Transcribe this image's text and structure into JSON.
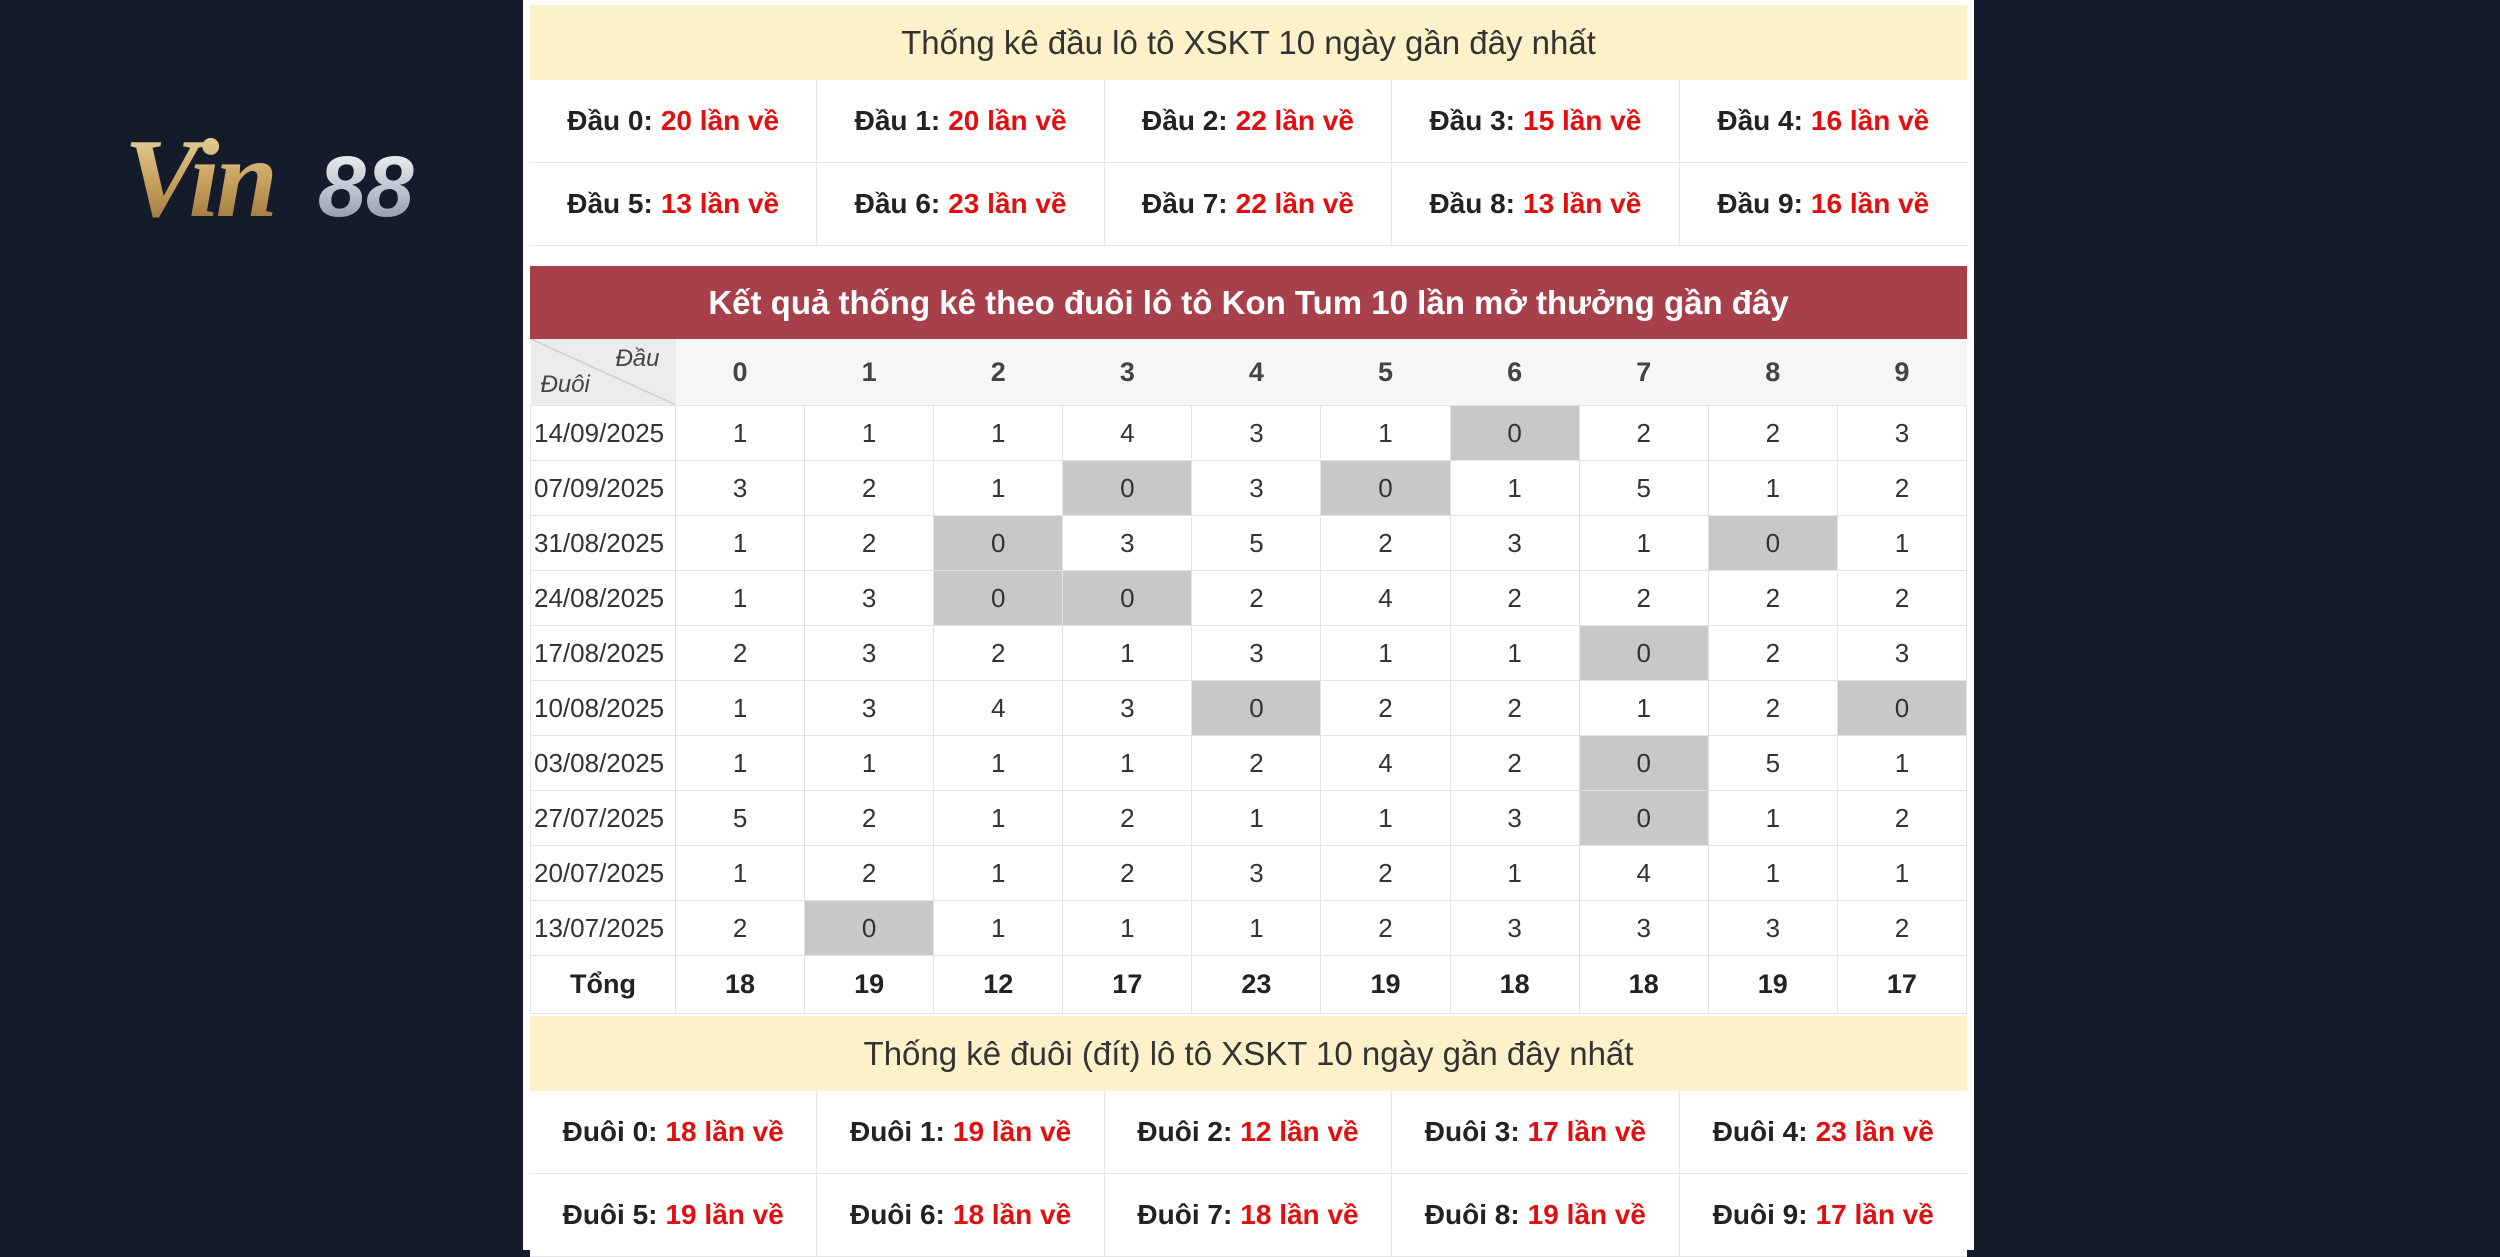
{
  "logo": {
    "text": "Vin88",
    "part1": "Vin",
    "part2": "88"
  },
  "head_summary": {
    "title": "Thống kê đầu lô tô XSKT 10 ngày gần đây nhất",
    "items": [
      {
        "label": "Đầu 0:",
        "value": "20 lần về"
      },
      {
        "label": "Đầu 1:",
        "value": "20 lần về"
      },
      {
        "label": "Đầu 2:",
        "value": "22 lần về"
      },
      {
        "label": "Đầu 3:",
        "value": "15 lần về"
      },
      {
        "label": "Đầu 4:",
        "value": "16 lần về"
      },
      {
        "label": "Đầu 5:",
        "value": "13 lần về"
      },
      {
        "label": "Đầu 6:",
        "value": "23 lần về"
      },
      {
        "label": "Đầu 7:",
        "value": "22 lần về"
      },
      {
        "label": "Đầu 8:",
        "value": "13 lần về"
      },
      {
        "label": "Đầu 9:",
        "value": "16 lần về"
      }
    ]
  },
  "table": {
    "title": "Kết quả thống kê theo đuôi lô tô Kon Tum 10 lần mở thưởng gần đây",
    "corner_top": "Đầu",
    "corner_bottom": "Đuôi",
    "columns": [
      "0",
      "1",
      "2",
      "3",
      "4",
      "5",
      "6",
      "7",
      "8",
      "9"
    ],
    "rows": [
      {
        "date": "14/09/2025",
        "values": [
          "1",
          "1",
          "1",
          "4",
          "3",
          "1",
          "0",
          "2",
          "2",
          "3"
        ]
      },
      {
        "date": "07/09/2025",
        "values": [
          "3",
          "2",
          "1",
          "0",
          "3",
          "0",
          "1",
          "5",
          "1",
          "2"
        ]
      },
      {
        "date": "31/08/2025",
        "values": [
          "1",
          "2",
          "0",
          "3",
          "5",
          "2",
          "3",
          "1",
          "0",
          "1"
        ]
      },
      {
        "date": "24/08/2025",
        "values": [
          "1",
          "3",
          "0",
          "0",
          "2",
          "4",
          "2",
          "2",
          "2",
          "2"
        ]
      },
      {
        "date": "17/08/2025",
        "values": [
          "2",
          "3",
          "2",
          "1",
          "3",
          "1",
          "1",
          "0",
          "2",
          "3"
        ]
      },
      {
        "date": "10/08/2025",
        "values": [
          "1",
          "3",
          "4",
          "3",
          "0",
          "2",
          "2",
          "1",
          "2",
          "0"
        ]
      },
      {
        "date": "03/08/2025",
        "values": [
          "1",
          "1",
          "1",
          "1",
          "2",
          "4",
          "2",
          "0",
          "5",
          "1"
        ]
      },
      {
        "date": "27/07/2025",
        "values": [
          "5",
          "2",
          "1",
          "2",
          "1",
          "1",
          "3",
          "0",
          "1",
          "2"
        ]
      },
      {
        "date": "20/07/2025",
        "values": [
          "1",
          "2",
          "1",
          "2",
          "3",
          "2",
          "1",
          "4",
          "1",
          "1"
        ]
      },
      {
        "date": "13/07/2025",
        "values": [
          "2",
          "0",
          "1",
          "1",
          "1",
          "2",
          "3",
          "3",
          "3",
          "2"
        ]
      }
    ],
    "total_label": "Tổng",
    "totals": [
      "18",
      "19",
      "12",
      "17",
      "23",
      "19",
      "18",
      "18",
      "19",
      "17"
    ]
  },
  "tail_summary": {
    "title": "Thống kê đuôi (đít) lô tô XSKT 10 ngày gần đây nhất",
    "items": [
      {
        "label": "Đuôi 0:",
        "value": "18 lần về"
      },
      {
        "label": "Đuôi 1:",
        "value": "19 lần về"
      },
      {
        "label": "Đuôi 2:",
        "value": "12 lần về"
      },
      {
        "label": "Đuôi 3:",
        "value": "17 lần về"
      },
      {
        "label": "Đuôi 4:",
        "value": "23 lần về"
      },
      {
        "label": "Đuôi 5:",
        "value": "19 lần về"
      },
      {
        "label": "Đuôi 6:",
        "value": "18 lần về"
      },
      {
        "label": "Đuôi 7:",
        "value": "18 lần về"
      },
      {
        "label": "Đuôi 8:",
        "value": "19 lần về"
      },
      {
        "label": "Đuôi 9:",
        "value": "17 lần về"
      }
    ]
  },
  "colors": {
    "background": "#141c2b",
    "title_bar": "#a8404c",
    "summary_title_bg": "#fdf1c9",
    "value_red": "#e01010",
    "zero_cell": "#c8c8c8"
  }
}
